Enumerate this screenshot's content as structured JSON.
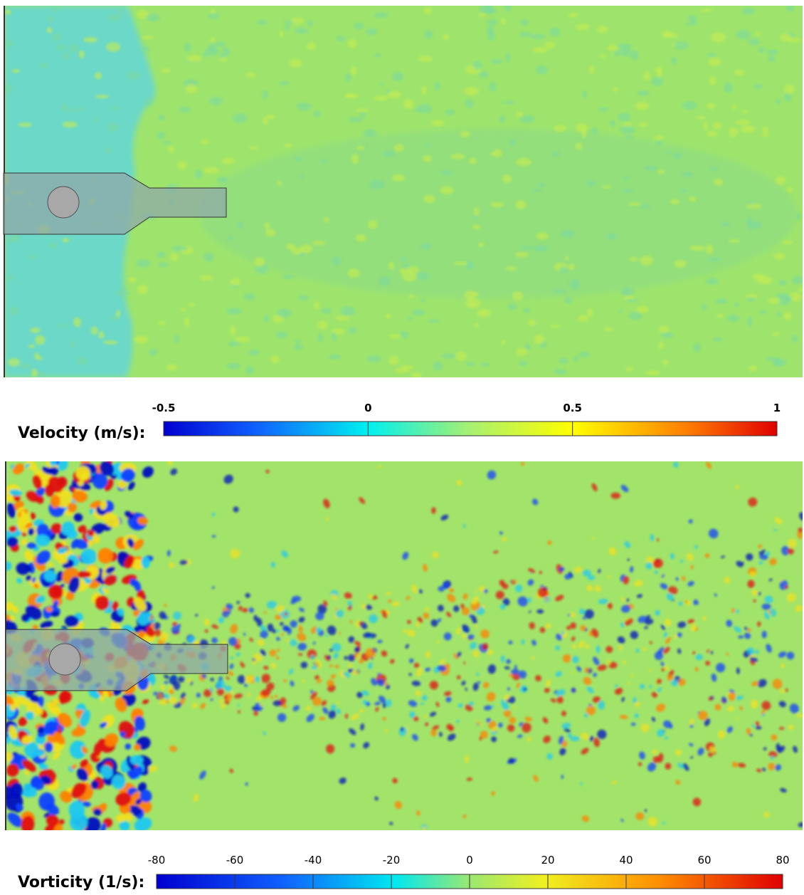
{
  "panels": [
    {
      "colorbar": {
        "label": "Velocity (m/s):",
        "lim": [
          -0.5,
          1
        ],
        "ticks": [
          -0.5,
          0,
          0.5,
          1
        ]
      }
    },
    {
      "colorbar": {
        "label": "Vorticity (1/s):",
        "lim": [
          -80,
          80
        ],
        "ticks": [
          -80,
          -60,
          -40,
          -20,
          0,
          20,
          40,
          60,
          80
        ]
      }
    }
  ]
}
